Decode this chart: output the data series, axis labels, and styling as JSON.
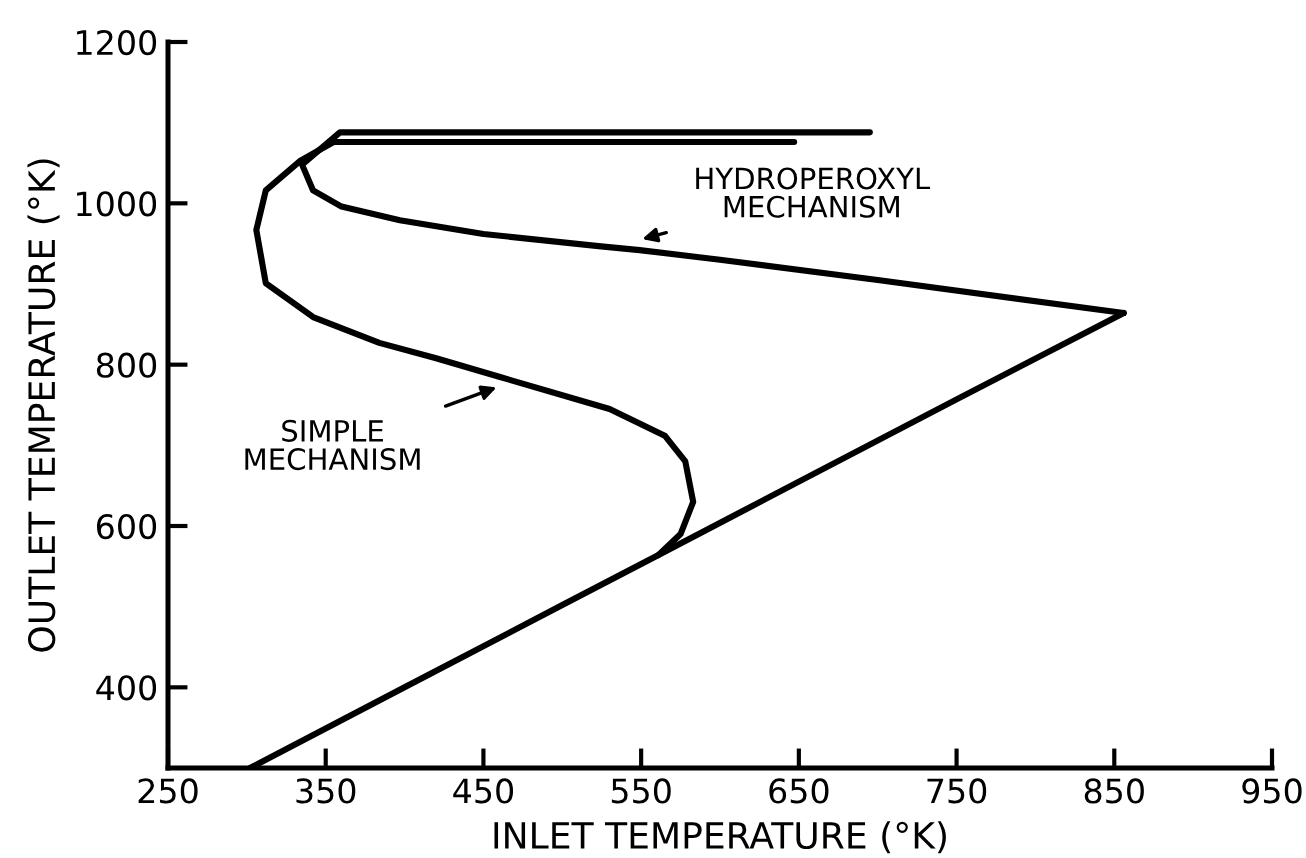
{
  "chart_data": {
    "type": "line",
    "xlabel": "INLET TEMPERATURE (°K)",
    "ylabel": "OUTLET TEMPERATURE (°K)",
    "xlim": [
      250,
      950
    ],
    "ylim": [
      300,
      1200
    ],
    "xticks": [
      250,
      350,
      450,
      550,
      650,
      750,
      850,
      950
    ],
    "yticks": [
      400,
      600,
      800,
      1000,
      1200
    ],
    "grid": false,
    "legend": false,
    "marker": "none",
    "line_style": "solid",
    "series": [
      {
        "color": "#000000",
        "x": [
          302,
          400,
          500,
          561,
          650,
          750,
          856
        ],
        "values": [
          300,
          400,
          502,
          564,
          655,
          757,
          864
        ]
      },
      {
        "color": "#000000",
        "x": [
          561,
          575,
          583,
          578,
          565,
          530,
          460,
          420,
          384,
          342,
          312,
          306,
          312,
          334,
          355,
          647
        ],
        "values": [
          564,
          590,
          630,
          680,
          712,
          745,
          785,
          808,
          827,
          859,
          901,
          967,
          1016,
          1053,
          1076,
          1076
        ]
      },
      {
        "color": "#000000",
        "x": [
          856,
          700,
          600,
          549,
          523,
          450,
          397,
          360,
          342,
          335,
          359,
          695
        ],
        "values": [
          864,
          905,
          930,
          942,
          947,
          962,
          979,
          996,
          1016,
          1048,
          1088,
          1088
        ]
      }
    ],
    "annotations": [
      {
        "text": "HYDROPEROXYL\nMECHANISM",
        "x": 549,
        "y": 955
      },
      {
        "text": "SIMPLE\nMECHANISM",
        "x": 460,
        "y": 773
      }
    ]
  }
}
